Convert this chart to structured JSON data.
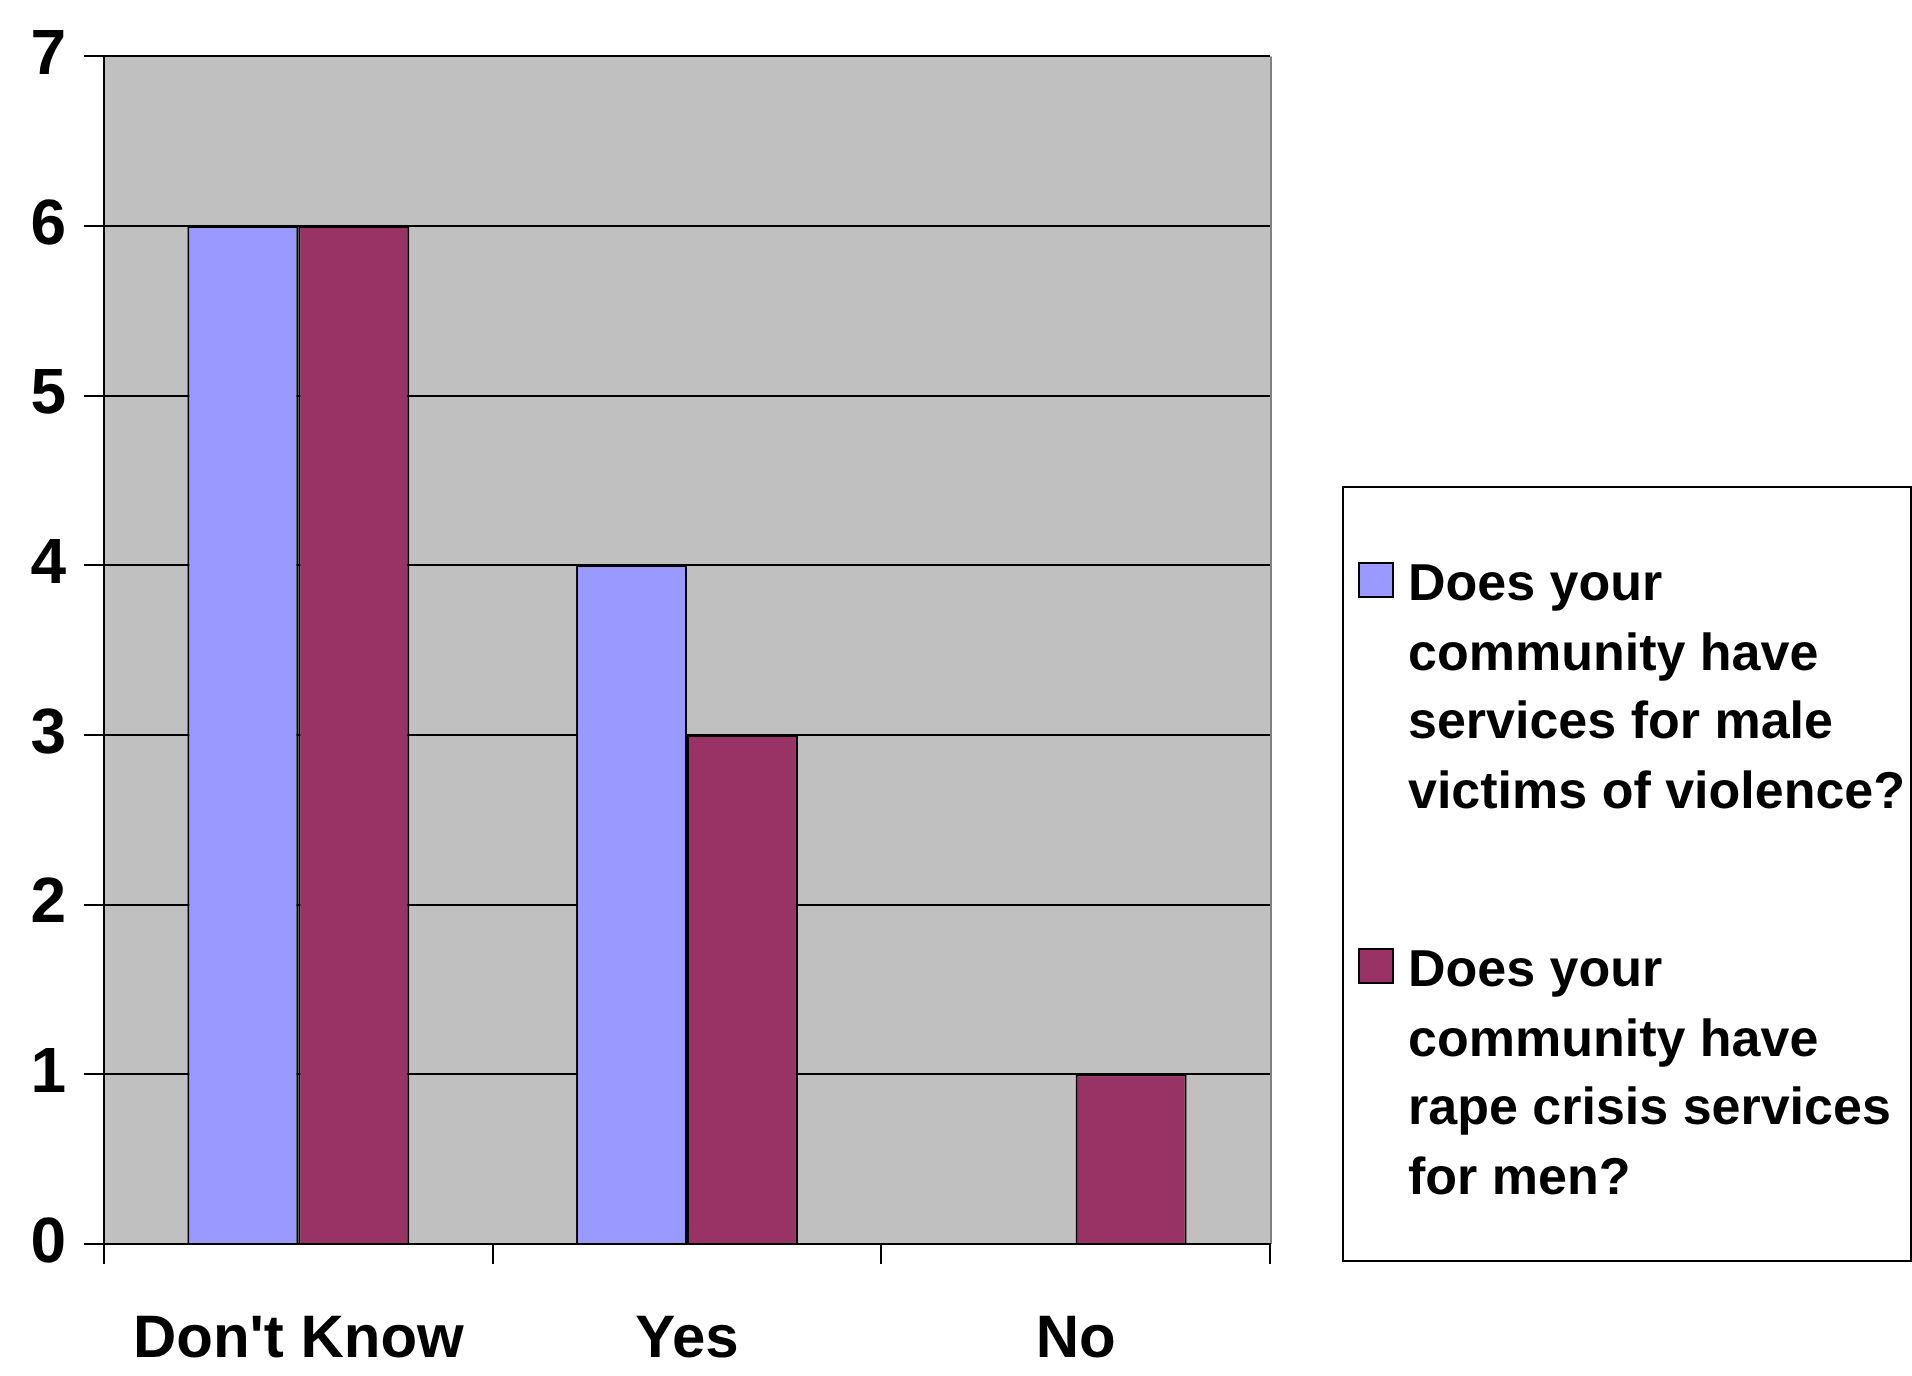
{
  "chart_data": {
    "type": "bar",
    "categories": [
      "Don't Know",
      "Yes",
      "No"
    ],
    "series": [
      {
        "name": "Does your community have services for male victims of violence?",
        "color": "#9999ff",
        "values": [
          6,
          4,
          0
        ]
      },
      {
        "name": "Does your community have rape crisis services for men?",
        "color": "#993366",
        "values": [
          6,
          3,
          1
        ]
      }
    ],
    "ylim": [
      0,
      7
    ],
    "yticks": [
      0,
      1,
      2,
      3,
      4,
      5,
      6,
      7
    ],
    "grid": "y",
    "legend": "right"
  }
}
